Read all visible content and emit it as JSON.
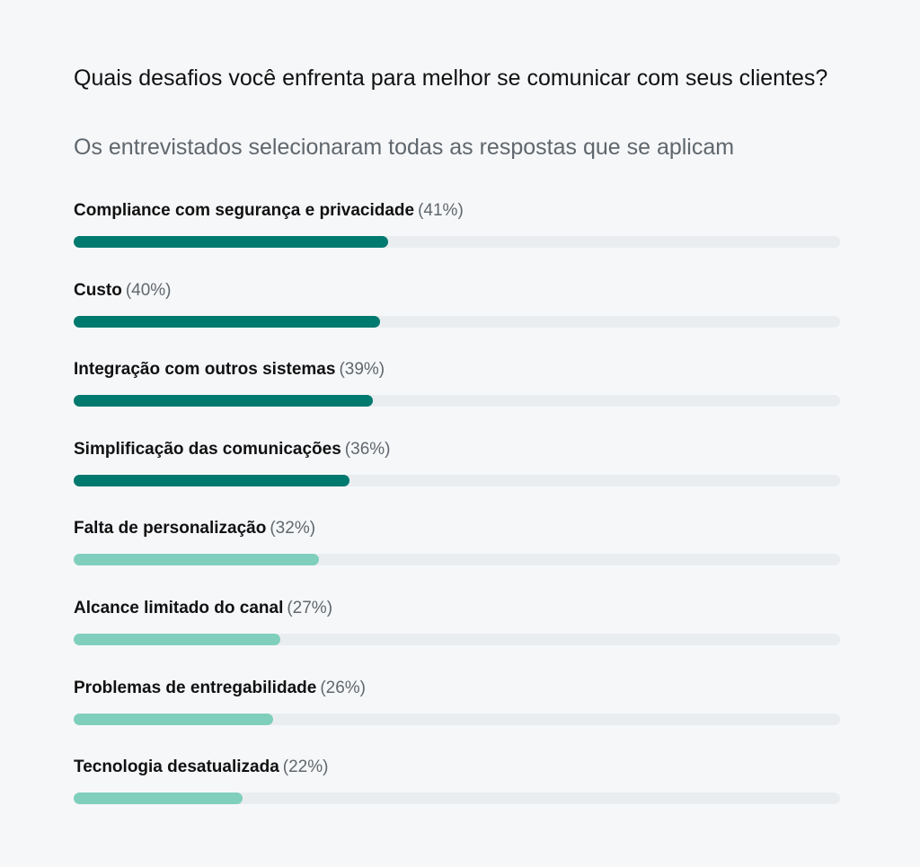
{
  "chart_data": {
    "type": "bar",
    "orientation": "horizontal",
    "title": "Quais desafios você enfrenta para melhor se comunicar com seus clientes?",
    "subtitle": "Os entrevistados selecionaram todas as respostas que se aplicam",
    "xlim": [
      0,
      100
    ],
    "unit": "%",
    "categories": [
      "Compliance com segurança e privacidade",
      "Custo",
      "Integração com outros sistemas",
      "Simplificação das comunicações",
      "Falta de personalização",
      "Alcance limitado do canal",
      "Problemas de entregabilidade",
      "Tecnologia desatualizada"
    ],
    "values": [
      41,
      40,
      39,
      36,
      32,
      27,
      26,
      22
    ],
    "value_labels": [
      "(41%)",
      "(40%)",
      "(39%)",
      "(36%)",
      "(32%)",
      "(27%)",
      "(26%)",
      "(22%)"
    ],
    "colors": {
      "top": "#00796f",
      "other": "#80cfbd",
      "track": "#eaedf0"
    },
    "highlighted_count": 4
  }
}
